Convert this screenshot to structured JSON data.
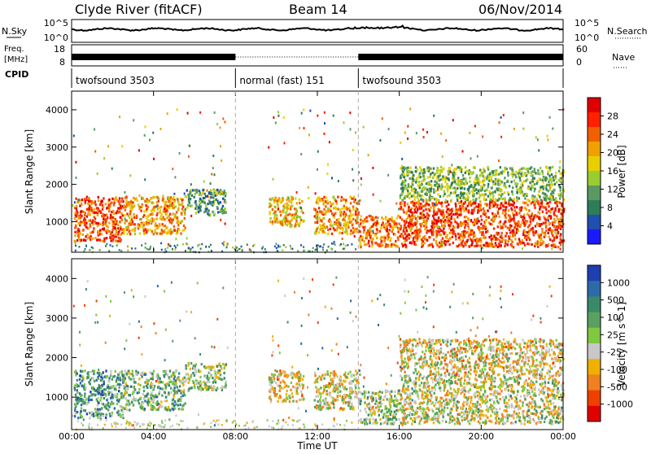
{
  "header": {
    "station": "Clyde River (fitACF)",
    "beam": "Beam 14",
    "date": "06/Nov/2014"
  },
  "status_panels": {
    "nsky_label": "N.Sky",
    "nsky_ticks": [
      "10^5",
      "10^0"
    ],
    "nsearch_label": "N.Search",
    "nsearch_ticks": [
      "10^5",
      "10^0"
    ],
    "freq_label_line1": "Freq.",
    "freq_label_line2": "[MHz]",
    "freq_ticks": [
      "18",
      "8"
    ],
    "nave_label": "Nave",
    "nave_ticks": [
      "60",
      "0"
    ],
    "cpid_label": "CPID",
    "cpid_segments": [
      {
        "label": "twofsound 3503",
        "start_hour": 0,
        "end_hour": 8
      },
      {
        "label": "normal (fast) 151",
        "start_hour": 8,
        "end_hour": 14
      },
      {
        "label": "twofsound 3503",
        "start_hour": 14,
        "end_hour": 24
      }
    ]
  },
  "x_axis": {
    "label": "Time UT",
    "ticks": [
      "00:00",
      "04:00",
      "08:00",
      "12:00",
      "16:00",
      "20:00",
      "00:00"
    ],
    "range_hours": [
      0,
      24
    ]
  },
  "colors": {
    "power_scale": [
      "#1a1aff",
      "#1f4fb0",
      "#2e7d5a",
      "#5a9a62",
      "#9acd32",
      "#e8d000",
      "#f0a000",
      "#f06000",
      "#ff2000",
      "#e00000"
    ],
    "velocity_scale": [
      "#1f3fb0",
      "#2e6aa8",
      "#3a8a6a",
      "#5aa060",
      "#80c840",
      "#c8c8c8",
      "#f0b000",
      "#f08020",
      "#f04000",
      "#e00000"
    ]
  },
  "chart_data": [
    {
      "type": "heatmap",
      "title": "",
      "xlabel": "Time UT",
      "ylabel": "Slant Range [km]",
      "xlim": [
        0,
        24
      ],
      "ylim": [
        180,
        4500
      ],
      "y_ticks": [
        1000,
        2000,
        3000,
        4000
      ],
      "colorbar": {
        "label": "Power [dB]",
        "ticks": [
          "28",
          "24",
          "20",
          "16",
          "12",
          "8",
          "4"
        ],
        "range": [
          0,
          30
        ]
      },
      "echo_regions": [
        {
          "t_start": 0.1,
          "t_end": 2.5,
          "range_low": 500,
          "range_high": 1700,
          "mean_value": 24
        },
        {
          "t_start": 2.5,
          "t_end": 5.5,
          "range_low": 700,
          "range_high": 1700,
          "mean_value": 20
        },
        {
          "t_start": 5.5,
          "t_end": 7.5,
          "range_low": 1200,
          "range_high": 1900,
          "mean_value": 10
        },
        {
          "t_start": 9.6,
          "t_end": 11.3,
          "range_low": 900,
          "range_high": 1700,
          "mean_value": 18
        },
        {
          "t_start": 11.8,
          "t_end": 14.0,
          "range_low": 700,
          "range_high": 1700,
          "mean_value": 20
        },
        {
          "t_start": 14.0,
          "t_end": 16.0,
          "range_low": 350,
          "range_high": 1200,
          "mean_value": 22
        },
        {
          "t_start": 16.0,
          "t_end": 24.0,
          "range_low": 350,
          "range_high": 1600,
          "mean_value": 24
        },
        {
          "t_start": 16.0,
          "t_end": 24.0,
          "range_low": 1600,
          "range_high": 2500,
          "mean_value": 12
        }
      ]
    },
    {
      "type": "heatmap",
      "title": "",
      "xlabel": "Time UT",
      "ylabel": "Slant Range [km]",
      "xlim": [
        0,
        24
      ],
      "ylim": [
        180,
        4500
      ],
      "y_ticks": [
        1000,
        2000,
        3000,
        4000
      ],
      "colorbar": {
        "label": "Velocity [m s^-1]",
        "ticks": [
          "1000",
          "500",
          "100",
          "25",
          "-25",
          "-100",
          "-500",
          "-1000"
        ],
        "range": [
          -1000,
          1000
        ]
      },
      "echo_regions": [
        {
          "t_start": 0.1,
          "t_end": 2.5,
          "range_low": 500,
          "range_high": 1700,
          "mean_value": 400
        },
        {
          "t_start": 2.5,
          "t_end": 5.5,
          "range_low": 700,
          "range_high": 1700,
          "mean_value": 200
        },
        {
          "t_start": 5.5,
          "t_end": 7.5,
          "range_low": 1200,
          "range_high": 1900,
          "mean_value": 100
        },
        {
          "t_start": 9.6,
          "t_end": 11.3,
          "range_low": 900,
          "range_high": 1700,
          "mean_value": -150
        },
        {
          "t_start": 11.8,
          "t_end": 14.0,
          "range_low": 700,
          "range_high": 1700,
          "mean_value": -120
        },
        {
          "t_start": 14.0,
          "t_end": 16.0,
          "range_low": 350,
          "range_high": 1200,
          "mean_value": 80
        },
        {
          "t_start": 16.0,
          "t_end": 24.0,
          "range_low": 350,
          "range_high": 1600,
          "mean_value": -60
        },
        {
          "t_start": 16.0,
          "t_end": 24.0,
          "range_low": 1600,
          "range_high": 2500,
          "mean_value": -150
        }
      ]
    }
  ]
}
